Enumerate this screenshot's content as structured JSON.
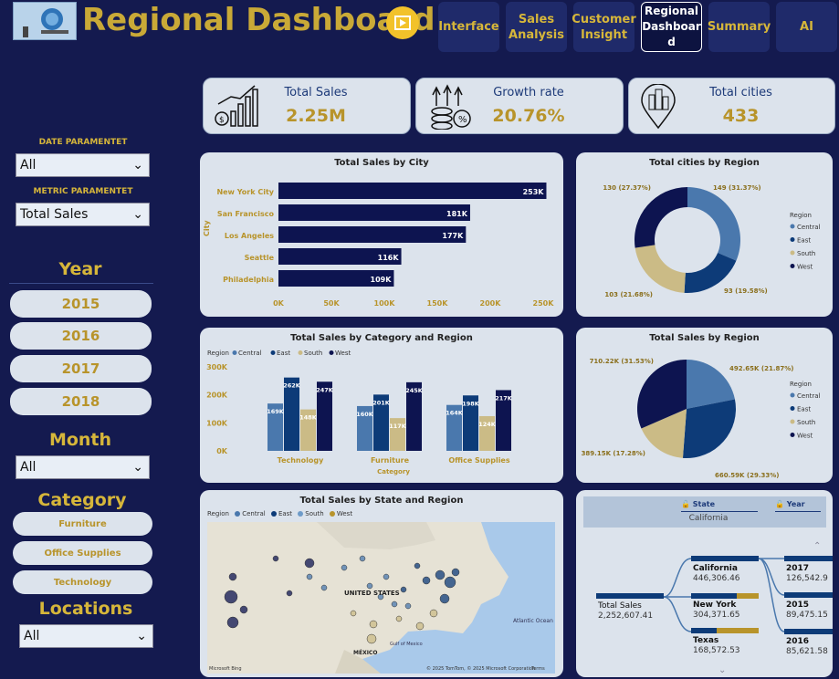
{
  "header": {
    "title": "Regional Dashboard"
  },
  "nav": [
    {
      "label": "Interface"
    },
    {
      "label": "Sales Analysis"
    },
    {
      "label": "Customer Insight"
    },
    {
      "label": "Regional Dashboar d"
    },
    {
      "label": "Summary"
    },
    {
      "label": "AI"
    }
  ],
  "kpis": [
    {
      "label": "Total Sales",
      "value": "2.25M"
    },
    {
      "label": "Growth rate",
      "value": "20.76%"
    },
    {
      "label": "Total cities",
      "value": "433"
    }
  ],
  "filters": {
    "date_label": "DATE PARAMENTET",
    "date_value": "All",
    "metric_label": "METRIC PARAMENTET",
    "metric_value": "Total Sales",
    "year_head": "Year",
    "years": [
      "2015",
      "2016",
      "2017",
      "2018"
    ],
    "month_head": "Month",
    "month_value": "All",
    "category_head": "Category",
    "categories": [
      "Furniture",
      "Office Supplies",
      "Technology"
    ],
    "locations_head": "Locations",
    "locations_value": "All"
  },
  "city_chart": {
    "title": "Total Sales by City",
    "ylabel": "City",
    "cities": [
      "New York City",
      "San Francisco",
      "Los Angeles",
      "Seattle",
      "Philadelphia"
    ],
    "values": [
      253,
      181,
      177,
      116,
      109
    ],
    "labels": [
      "253K",
      "181K",
      "177K",
      "116K",
      "109K"
    ],
    "ticks": [
      "0K",
      "50K",
      "100K",
      "150K",
      "200K",
      "250K"
    ]
  },
  "cities_region": {
    "title": "Total cities by Region",
    "legend_title": "Region",
    "regions": [
      "Central",
      "East",
      "South",
      "West"
    ],
    "labels": [
      "149 (31.37%)",
      "93 (19.58%)",
      "103 (21.68%)",
      "130 (27.37%)"
    ]
  },
  "cat_chart": {
    "title": "Total Sales by Category and Region",
    "legend_title": "Region",
    "regions": [
      "Central",
      "East",
      "South",
      "West"
    ],
    "yticks": [
      "300K",
      "200K",
      "100K",
      "0K"
    ],
    "xlabel": "Category",
    "groups": [
      {
        "name": "Technology",
        "labels": [
          "169K",
          "262K",
          "148K",
          "247K"
        ]
      },
      {
        "name": "Furniture",
        "labels": [
          "160K",
          "201K",
          "117K",
          "245K"
        ]
      },
      {
        "name": "Office Supplies",
        "labels": [
          "164K",
          "198K",
          "124K",
          "217K"
        ]
      }
    ]
  },
  "sales_region": {
    "title": "Total Sales by Region",
    "legend_title": "Region",
    "regions": [
      "Central",
      "East",
      "South",
      "West"
    ],
    "labels": [
      "492.65K (21.87%)",
      "660.59K (29.33%)",
      "389.15K (17.28%)",
      "710.22K (31.53%)"
    ]
  },
  "map": {
    "title": "Total Sales by State and Region",
    "legend_title": "Region",
    "regions": [
      "Central",
      "East",
      "South",
      "West"
    ],
    "us": "UNITED STATES",
    "mx": "MÉXICO",
    "ocean": "Atlantic Ocean",
    "gulf": "Gulf of Mexico",
    "credit": "© 2025 TomTom, © 2025 Microsoft Corporation",
    "bing": "Microsoft Bing",
    "terms": "Terms"
  },
  "tree": {
    "state_header": "State",
    "year_header": "Year",
    "selected": "California",
    "root": {
      "label": "Total Sales",
      "value": "2,252,607.41"
    },
    "states": [
      {
        "name": "California",
        "value": "446,306.46"
      },
      {
        "name": "New York",
        "value": "304,371.65"
      },
      {
        "name": "Texas",
        "value": "168,572.53"
      }
    ],
    "years": [
      {
        "name": "2017",
        "value": "126,542.9"
      },
      {
        "name": "2015",
        "value": "89,475.15"
      },
      {
        "name": "2016",
        "value": "85,621.58"
      }
    ]
  },
  "chart_data": [
    {
      "type": "bar",
      "title": "Total Sales by City",
      "categories": [
        "New York City",
        "San Francisco",
        "Los Angeles",
        "Seattle",
        "Philadelphia"
      ],
      "values": [
        253,
        181,
        177,
        116,
        109
      ],
      "xlabel": "",
      "ylabel": "City",
      "xlim": [
        0,
        250
      ]
    },
    {
      "type": "pie",
      "title": "Total cities by Region",
      "categories": [
        "Central",
        "East",
        "South",
        "West"
      ],
      "values": [
        149,
        93,
        103,
        130
      ]
    },
    {
      "type": "bar",
      "title": "Total Sales by Category and Region",
      "categories": [
        "Technology",
        "Furniture",
        "Office Supplies"
      ],
      "series": [
        {
          "name": "Central",
          "values": [
            169,
            160,
            164
          ]
        },
        {
          "name": "East",
          "values": [
            262,
            201,
            198
          ]
        },
        {
          "name": "South",
          "values": [
            148,
            117,
            124
          ]
        },
        {
          "name": "West",
          "values": [
            247,
            245,
            217
          ]
        }
      ],
      "ylim": [
        0,
        300
      ]
    },
    {
      "type": "pie",
      "title": "Total Sales by Region",
      "categories": [
        "Central",
        "East",
        "South",
        "West"
      ],
      "values": [
        492.65,
        660.59,
        389.15,
        710.22
      ]
    }
  ],
  "colors": {
    "central": "#4a78ad",
    "east": "#0d3b78",
    "south": "#cbbb86",
    "west": "#0d1450",
    "navy": "#0d1450",
    "gold": "#b8942b"
  }
}
